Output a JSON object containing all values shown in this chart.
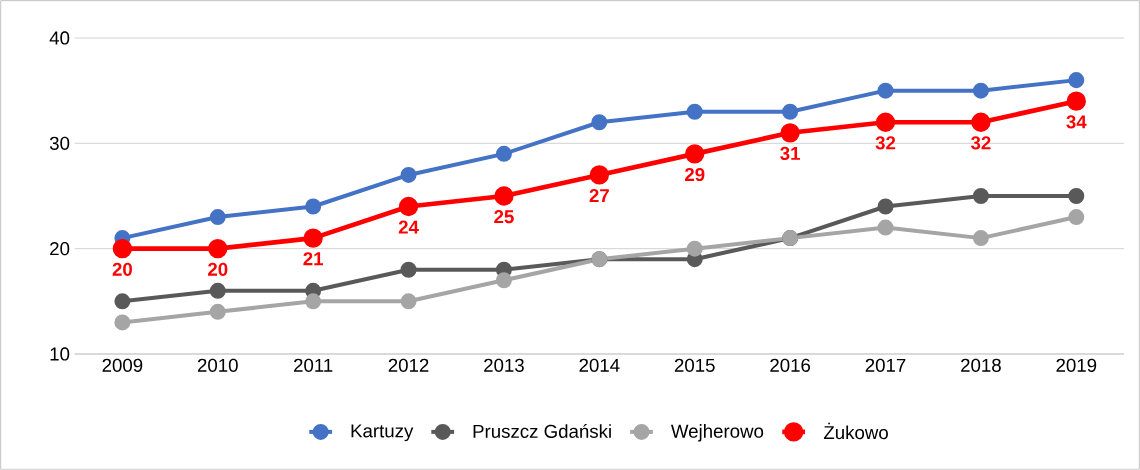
{
  "chart_data": {
    "type": "line",
    "categories": [
      "2009",
      "2010",
      "2011",
      "2012",
      "2013",
      "2014",
      "2015",
      "2016",
      "2017",
      "2018",
      "2019"
    ],
    "series": [
      {
        "name": "Kartuzy",
        "color": "#4472c4",
        "values": [
          21,
          23,
          24,
          27,
          29,
          32,
          33,
          33,
          35,
          35,
          36
        ]
      },
      {
        "name": "Pruszcz Gdański",
        "color": "#595959",
        "values": [
          15,
          16,
          16,
          18,
          18,
          19,
          19,
          21,
          24,
          25,
          25
        ]
      },
      {
        "name": "Wejherowo",
        "color": "#a5a5a5",
        "values": [
          13,
          14,
          15,
          15,
          17,
          19,
          20,
          21,
          22,
          21,
          23
        ]
      },
      {
        "name": "Żukowo",
        "color": "#ff0000",
        "values": [
          20,
          20,
          21,
          24,
          25,
          27,
          29,
          31,
          32,
          32,
          34
        ],
        "value_labels": [
          "20",
          "20",
          "21",
          "24",
          "25",
          "27",
          "29",
          "31",
          "32",
          "32",
          "34"
        ]
      }
    ],
    "ylim": [
      10,
      40
    ],
    "yticks": [
      10,
      20,
      30,
      40
    ],
    "grid": "y",
    "legend": "bottom",
    "marker": "circle"
  }
}
